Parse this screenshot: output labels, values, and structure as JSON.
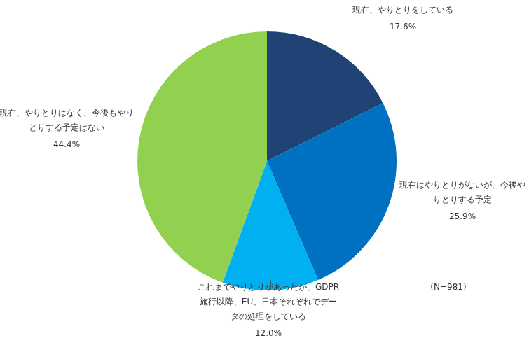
{
  "chart_data": {
    "type": "pie",
    "categories": [
      "現在、やりとりをしている",
      "現在はやりとりがないが、今後やりとりする予定",
      "これまでやりとりがあったが、GDPR施行以降、EU、日本それぞれでデータの処理をしている",
      "現在、やりとりはなく、今後もやりとりする予定はない"
    ],
    "values": [
      17.6,
      25.9,
      12.0,
      44.4
    ],
    "value_labels": [
      "17.6%",
      "25.9%",
      "12.0%",
      "44.4%"
    ],
    "colors": [
      "#1f4374",
      "#0070c0",
      "#00b0f0",
      "#92d050"
    ],
    "data_labels": true,
    "annotation": "(N=981)"
  }
}
